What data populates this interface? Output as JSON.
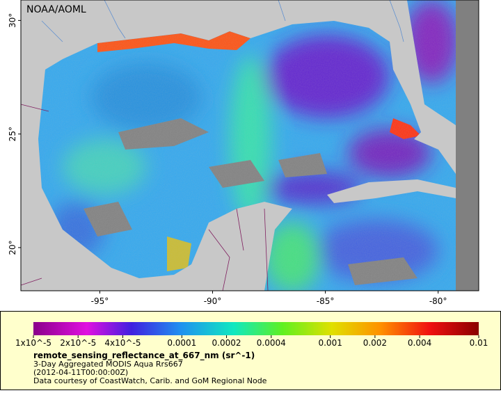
{
  "header": {
    "credit": "NOAA/AOML"
  },
  "map": {
    "lonlim": [
      -98.5,
      -78.2
    ],
    "latlim": [
      18.1,
      30.9
    ],
    "lat_ticks": [
      {
        "value": 30,
        "label": "30°"
      },
      {
        "value": 25,
        "label": "25°"
      },
      {
        "value": 20,
        "label": "20°"
      }
    ],
    "lon_ticks": [
      {
        "value": -95,
        "label": "-95°"
      },
      {
        "value": -90,
        "label": "-90°"
      },
      {
        "value": -85,
        "label": "-85°"
      },
      {
        "value": -80,
        "label": "-80°"
      }
    ]
  },
  "colorbar": {
    "range": [
      1e-05,
      0.01
    ],
    "log": true,
    "ticks": [
      {
        "value": 1e-05,
        "label": "1x10^-5"
      },
      {
        "value": 2e-05,
        "label": "2x10^-5"
      },
      {
        "value": 4e-05,
        "label": "4x10^-5"
      },
      0.0001,
      0.0002,
      0.0004,
      0.001,
      0.002,
      0.004,
      0.01
    ],
    "title": "remote_sensing_reflectance_at_667_nm (sr^-1)",
    "subtitle": "3-Day Aggregated MODIS Aqua Rrs667",
    "date": "(2012-04-11T00:00:00Z)",
    "source": "Data courtesy of CoastWatch, Carib. and GoM Regional Node"
  }
}
